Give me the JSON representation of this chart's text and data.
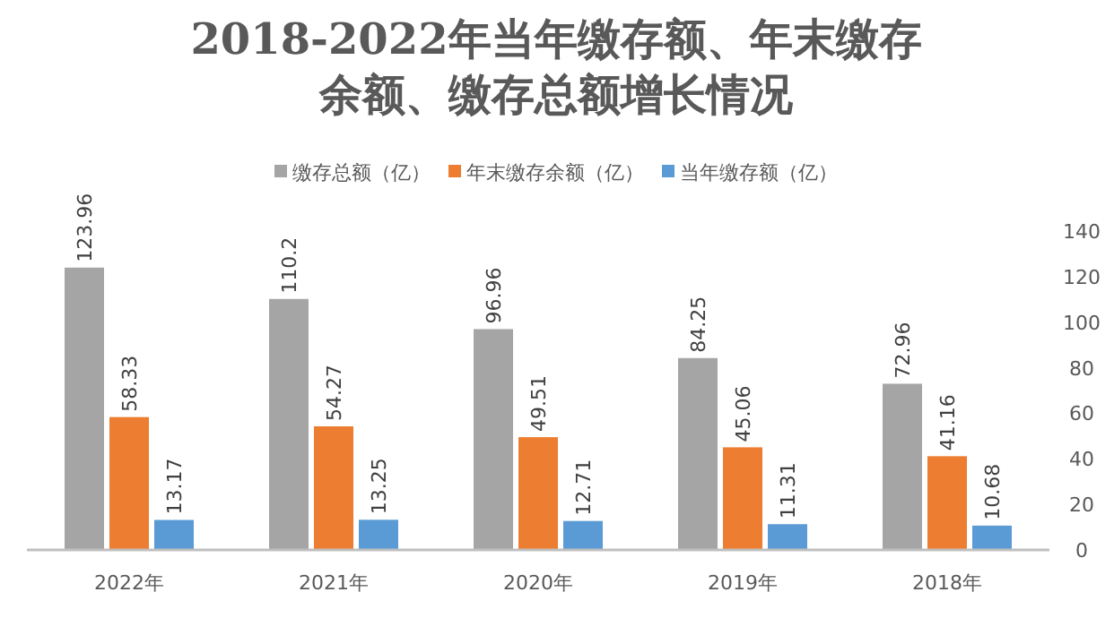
{
  "chart_data": {
    "type": "bar",
    "title": "2018-2022年当年缴存额、年末缴存余额、缴存总额增长情况",
    "categories": [
      "2022年",
      "2021年",
      "2020年",
      "2019年",
      "2018年"
    ],
    "series": [
      {
        "name": "缴存总额（亿）",
        "color": "#a5a5a5",
        "values": [
          123.96,
          110.2,
          96.96,
          84.25,
          72.96
        ]
      },
      {
        "name": "年末缴存余额（亿）",
        "color": "#ed7d31",
        "values": [
          58.33,
          54.27,
          49.51,
          45.06,
          41.16
        ]
      },
      {
        "name": "当年缴存额（亿）",
        "color": "#5b9bd5",
        "values": [
          13.17,
          13.25,
          12.71,
          11.31,
          10.68
        ]
      }
    ],
    "ylim": [
      0,
      140
    ],
    "yticks": [
      0,
      20,
      40,
      60,
      80,
      100,
      120,
      140
    ],
    "data_labels": true,
    "legend": "top",
    "grid": false
  }
}
